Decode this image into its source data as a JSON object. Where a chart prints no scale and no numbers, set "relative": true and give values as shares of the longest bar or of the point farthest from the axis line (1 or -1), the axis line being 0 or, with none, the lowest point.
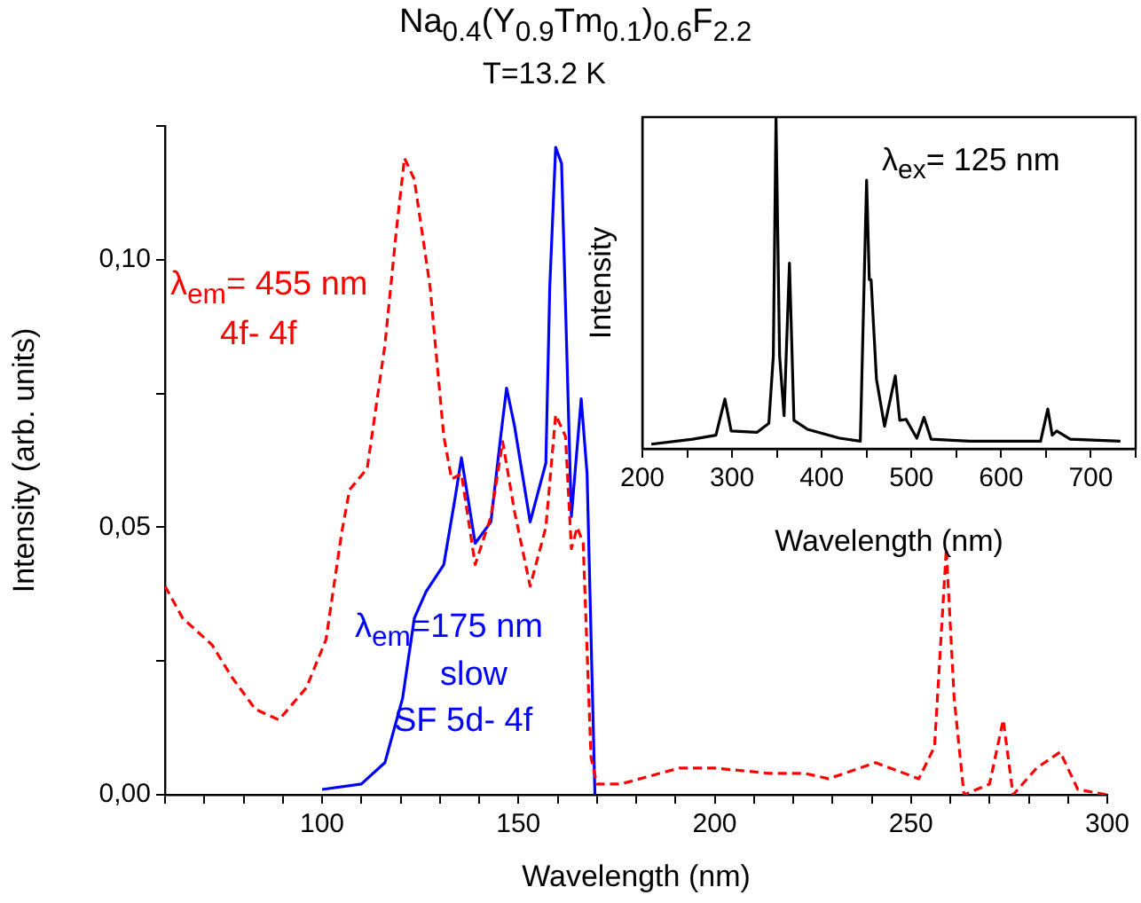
{
  "chart_data": [
    {
      "type": "line",
      "title": "Na$_{0.4}$(Y$_{0.9}$Tm$_{0.1}$)$_{0.6}$F$_{2.2}$",
      "subtitle": "T=13.2 K",
      "xlabel": "Wavelength (nm)",
      "ylabel": "Intensity (arb. units)",
      "xlim": [
        60,
        300
      ],
      "ylim": [
        0,
        0.125
      ],
      "xticks": [
        {
          "value": 60,
          "label": null
        },
        {
          "value": 70,
          "label": null
        },
        {
          "value": 80,
          "label": null
        },
        {
          "value": 90,
          "label": null
        },
        100,
        {
          "value": 110,
          "label": null
        },
        {
          "value": 120,
          "label": null
        },
        {
          "value": 130,
          "label": null
        },
        {
          "value": 140,
          "label": null
        },
        150,
        {
          "value": 160,
          "label": null
        },
        {
          "value": 170,
          "label": null
        },
        {
          "value": 180,
          "label": null
        },
        {
          "value": 190,
          "label": null
        },
        200,
        {
          "value": 210,
          "label": null
        },
        {
          "value": 220,
          "label": null
        },
        {
          "value": 230,
          "label": null
        },
        {
          "value": 240,
          "label": null
        },
        250,
        {
          "value": 260,
          "label": null
        },
        {
          "value": 270,
          "label": null
        },
        {
          "value": 280,
          "label": null
        },
        {
          "value": 290,
          "label": null
        },
        300
      ],
      "yticks": [
        {
          "value": 0,
          "label": "0,00"
        },
        {
          "value": 0.025,
          "label": null
        },
        {
          "value": 0.05,
          "label": "0,05"
        },
        {
          "value": 0.075,
          "label": null
        },
        {
          "value": 0.1,
          "label": "0,10"
        },
        {
          "value": 0.125,
          "label": null
        }
      ],
      "grid": false,
      "legend": false,
      "marker": "none",
      "series": [
        {
          "name": "λ$_{em}$= 455 nm",
          "color": "#ff0000",
          "line_style": "dashed",
          "x": [
            60,
            64.5,
            72,
            77,
            83,
            89,
            96,
            101,
            105,
            107,
            111.5,
            116,
            119,
            121,
            123.5,
            127.5,
            131,
            133,
            135.5,
            139,
            143,
            146,
            149,
            153,
            157,
            159.5,
            162,
            163.5,
            165,
            166.5,
            168.5,
            170,
            176,
            191,
            200,
            214,
            223,
            229,
            241,
            252,
            256,
            259,
            261,
            263.5,
            270,
            273.5,
            276,
            282,
            288,
            292.5,
            300
          ],
          "values": [
            0.039,
            0.033,
            0.028,
            0.022,
            0.016,
            0.014,
            0.02,
            0.029,
            0.049,
            0.057,
            0.061,
            0.084,
            0.106,
            0.119,
            0.115,
            0.095,
            0.067,
            0.059,
            0.06,
            0.043,
            0.052,
            0.066,
            0.053,
            0.039,
            0.05,
            0.071,
            0.067,
            0.046,
            0.05,
            0.047,
            0.007,
            0.002,
            0.002,
            0.005,
            0.005,
            0.004,
            0.004,
            0.003,
            0.006,
            0.003,
            0.009,
            0.046,
            0.018,
            0.0,
            0.002,
            0.014,
            0.0,
            0.005,
            0.008,
            0.001,
            0.0
          ]
        },
        {
          "name": "λ$_{em}$=175 nm",
          "color": "#0000ff",
          "line_style": "solid",
          "x": [
            100,
            110,
            116,
            120.5,
            123.5,
            126.5,
            131,
            134,
            135.5,
            139,
            143,
            145.5,
            147,
            149,
            153,
            157,
            158,
            159.5,
            161,
            163.5,
            166,
            167.5,
            169.5
          ],
          "values": [
            0.001,
            0.002,
            0.006,
            0.018,
            0.033,
            0.038,
            0.043,
            0.056,
            0.063,
            0.047,
            0.051,
            0.067,
            0.076,
            0.069,
            0.051,
            0.062,
            0.095,
            0.121,
            0.118,
            0.052,
            0.074,
            0.06,
            0.0
          ]
        }
      ],
      "annotations": [
        "4f- 4f",
        "slow",
        "SF 5d- 4f"
      ]
    },
    {
      "type": "line",
      "xlabel": "Wavelength (nm)",
      "ylabel": "Intensity",
      "relative": true,
      "tick_labels": "x",
      "xlim": [
        200,
        750
      ],
      "xticks": [
        200,
        {
          "value": 250,
          "label": null
        },
        300,
        {
          "value": 350,
          "label": null
        },
        400,
        {
          "value": 450,
          "label": null
        },
        500,
        {
          "value": 550,
          "label": null
        },
        600,
        {
          "value": 650,
          "label": null
        },
        700,
        {
          "value": 750,
          "label": null
        }
      ],
      "grid": false,
      "legend": false,
      "marker": "none",
      "series": [
        {
          "color": "#000000",
          "line_style": "solid",
          "x": [
            210,
            256,
            282,
            292,
            299,
            328,
            341,
            346,
            349,
            353,
            358,
            364,
            369,
            384,
            420,
            443,
            450,
            453,
            455,
            461,
            470,
            482,
            487,
            494,
            506,
            514,
            522,
            565,
            644,
            652,
            657,
            662,
            677,
            733
          ],
          "values": [
            0.014,
            0.029,
            0.041,
            0.15,
            0.054,
            0.05,
            0.077,
            0.28,
            1,
            0.28,
            0.1,
            0.56,
            0.086,
            0.059,
            0.032,
            0.023,
            0.81,
            0.51,
            0.51,
            0.21,
            0.068,
            0.22,
            0.086,
            0.089,
            0.032,
            0.095,
            0.029,
            0.023,
            0.023,
            0.12,
            0.041,
            0.054,
            0.029,
            0.023
          ]
        }
      ],
      "annotations": [
        "λ$_{ex}$= 125 nm"
      ]
    }
  ]
}
